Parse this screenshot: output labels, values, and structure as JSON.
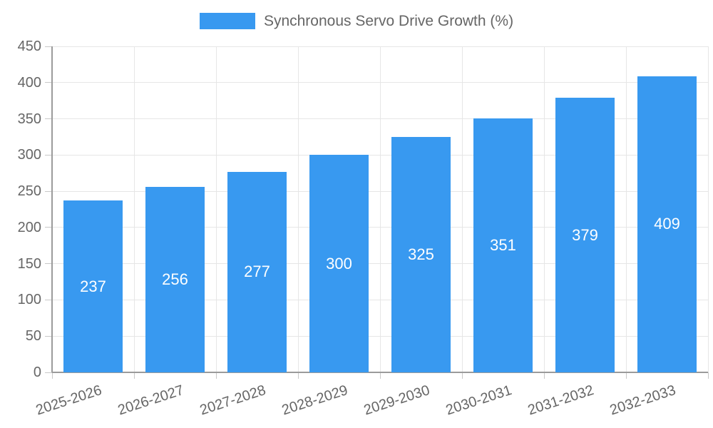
{
  "chart_data": {
    "type": "bar",
    "title": "Synchronous Servo Drive Growth (%)",
    "categories": [
      "2025-2026",
      "2026-2027",
      "2027-2028",
      "2028-2029",
      "2029-2030",
      "2030-2031",
      "2031-2032",
      "2032-2033"
    ],
    "values": [
      237,
      256,
      277,
      300,
      325,
      351,
      379,
      409
    ],
    "xlabel": "",
    "ylabel": "",
    "ylim": [
      0,
      450
    ],
    "ytick_step": 50,
    "yticks": [
      0,
      50,
      100,
      150,
      200,
      250,
      300,
      350,
      400,
      450
    ],
    "grid": true,
    "legend_position": "top",
    "value_labels": "inside-center",
    "colors": {
      "bar": "#3899f0",
      "grid": "#e6e6e6",
      "axis": "#9b9b9b",
      "tick": "#c8c8c8",
      "text": "#666666",
      "value_text": "#ffffff",
      "background": "#ffffff"
    }
  }
}
